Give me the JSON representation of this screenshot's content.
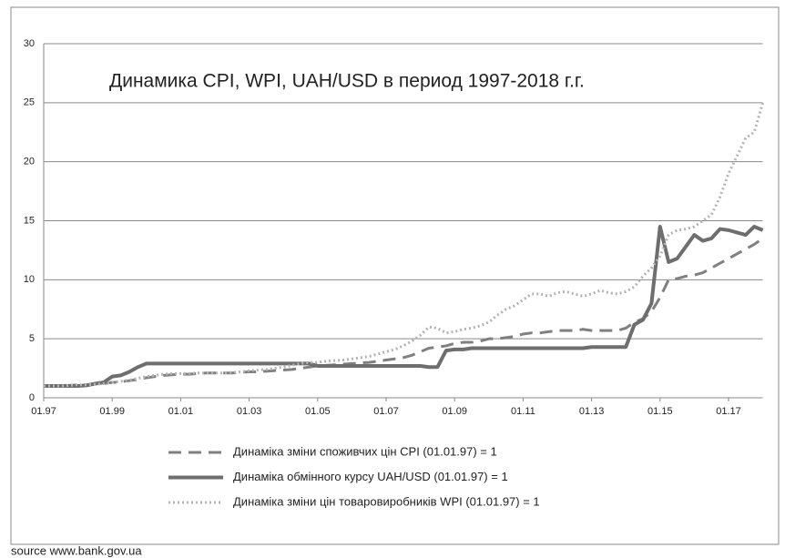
{
  "chart_data": {
    "type": "line",
    "title": "Динамика CPI, WPI, UAH/USD в период  1997-2018 г.г.",
    "source": "source www.bank.gov.ua",
    "categories": [
      "01.97",
      null,
      null,
      null,
      null,
      null,
      null,
      null,
      "01.99",
      null,
      null,
      null,
      null,
      null,
      null,
      null,
      "01.01",
      null,
      null,
      null,
      null,
      null,
      null,
      null,
      "01.03",
      null,
      null,
      null,
      null,
      null,
      null,
      null,
      "01.05",
      null,
      null,
      null,
      null,
      null,
      null,
      null,
      "01.07",
      null,
      null,
      null,
      null,
      null,
      null,
      null,
      "01.09",
      null,
      null,
      null,
      null,
      null,
      null,
      null,
      "01.11",
      null,
      null,
      null,
      null,
      null,
      null,
      null,
      "01.13",
      null,
      null,
      null,
      null,
      null,
      null,
      null,
      "01.15",
      null,
      null,
      null,
      null,
      null,
      null,
      null,
      "01.17",
      null,
      null,
      null,
      null
    ],
    "ylim": [
      0,
      30
    ],
    "yticks": [
      0,
      5,
      10,
      15,
      20,
      25,
      30
    ],
    "grid": true,
    "legend": "bottom",
    "series": [
      {
        "name": "Динаміка зміни споживчих цін CPI (01.01.97) = 1",
        "color": "#808080",
        "style": "dashed",
        "values": [
          1.0,
          1.0,
          1.05,
          1.05,
          1.1,
          1.1,
          1.15,
          1.2,
          1.3,
          1.35,
          1.45,
          1.55,
          1.7,
          1.8,
          1.9,
          1.95,
          2.0,
          2.0,
          2.05,
          2.1,
          2.1,
          2.1,
          2.1,
          2.15,
          2.2,
          2.2,
          2.25,
          2.3,
          2.35,
          2.4,
          2.5,
          2.6,
          2.7,
          2.75,
          2.8,
          2.85,
          2.9,
          2.95,
          3.0,
          3.1,
          3.2,
          3.3,
          3.4,
          3.6,
          3.9,
          4.2,
          4.3,
          4.4,
          4.6,
          4.7,
          4.7,
          4.8,
          5.0,
          5.0,
          5.1,
          5.2,
          5.4,
          5.5,
          5.5,
          5.6,
          5.7,
          5.7,
          5.7,
          5.8,
          5.7,
          5.7,
          5.7,
          5.7,
          5.9,
          6.4,
          6.7,
          7.3,
          8.5,
          10.0,
          10.1,
          10.3,
          10.4,
          10.6,
          11.0,
          11.4,
          11.8,
          12.2,
          12.6,
          13.0,
          13.5
        ]
      },
      {
        "name": "Динаміка обмінного курсу UAH/USD (01.01.97) = 1",
        "color": "#6e6e6e",
        "style": "solid",
        "values": [
          1.0,
          1.0,
          1.0,
          1.0,
          1.0,
          1.05,
          1.2,
          1.3,
          1.8,
          1.9,
          2.2,
          2.6,
          2.9,
          2.9,
          2.9,
          2.9,
          2.9,
          2.9,
          2.9,
          2.9,
          2.9,
          2.9,
          2.9,
          2.9,
          2.9,
          2.9,
          2.9,
          2.9,
          2.9,
          2.9,
          2.9,
          2.9,
          2.7,
          2.7,
          2.7,
          2.7,
          2.7,
          2.7,
          2.7,
          2.7,
          2.7,
          2.7,
          2.7,
          2.7,
          2.7,
          2.6,
          2.6,
          4.0,
          4.1,
          4.1,
          4.2,
          4.2,
          4.2,
          4.2,
          4.2,
          4.2,
          4.2,
          4.2,
          4.2,
          4.2,
          4.2,
          4.2,
          4.2,
          4.2,
          4.3,
          4.3,
          4.3,
          4.3,
          4.3,
          6.2,
          6.6,
          8.0,
          14.5,
          11.5,
          11.8,
          12.8,
          13.8,
          13.3,
          13.5,
          14.3,
          14.2,
          14.0,
          13.8,
          14.5,
          14.2
        ]
      },
      {
        "name": "Динаміка зміни цін товаровиробників WPI (01.01.97) = 1",
        "color": "#b4b4b4",
        "style": "dotted",
        "values": [
          1.0,
          1.0,
          1.0,
          1.05,
          1.1,
          1.1,
          1.15,
          1.2,
          1.3,
          1.4,
          1.5,
          1.65,
          1.8,
          1.9,
          2.0,
          2.05,
          2.05,
          2.05,
          2.1,
          2.1,
          2.1,
          2.1,
          2.15,
          2.2,
          2.3,
          2.35,
          2.4,
          2.5,
          2.6,
          2.75,
          2.9,
          3.0,
          3.0,
          3.1,
          3.15,
          3.2,
          3.3,
          3.4,
          3.5,
          3.7,
          3.9,
          4.1,
          4.4,
          4.8,
          5.3,
          6.0,
          5.9,
          5.5,
          5.6,
          5.8,
          5.9,
          6.1,
          6.4,
          7.0,
          7.5,
          7.8,
          8.3,
          8.8,
          8.8,
          8.6,
          8.9,
          9.0,
          8.8,
          8.6,
          8.8,
          9.1,
          8.9,
          8.8,
          9.0,
          9.4,
          10.3,
          11.0,
          12.0,
          13.8,
          14.2,
          14.3,
          14.5,
          15.0,
          15.5,
          17.0,
          19.0,
          20.5,
          22.0,
          22.5,
          25.0
        ]
      }
    ]
  }
}
